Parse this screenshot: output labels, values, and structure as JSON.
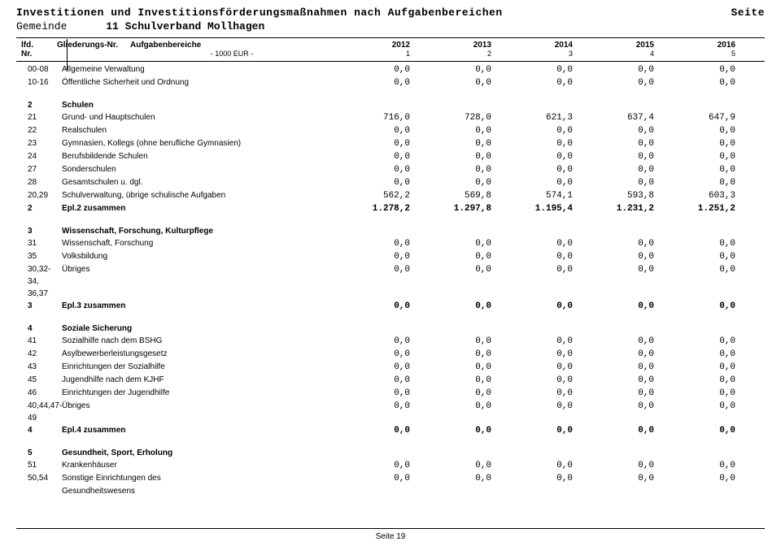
{
  "header": {
    "title": "Investitionen und Investitionsförderungsmaßnahmen nach Aufgabenbereichen",
    "page_label": "Seite",
    "gemeinde_label": "Gemeinde",
    "gemeinde_value": "11 Schulverband Mollhagen"
  },
  "thead": {
    "lfd": "lfd.",
    "nr": "Nr.",
    "glied": "Gliederungs-Nr.",
    "aufg": "Aufgabenbereiche",
    "years": [
      "2012",
      "2013",
      "2014",
      "2015",
      "2016"
    ],
    "eur": "- 1000 EUR -",
    "cols": [
      "1",
      "2",
      "3",
      "4",
      "5"
    ]
  },
  "rows": [
    {
      "nr": "00-08",
      "desc": "Allgemeine Verwaltung",
      "v": [
        "0,0",
        "0,0",
        "0,0",
        "0,0",
        "0,0"
      ]
    },
    {
      "nr": "10-16",
      "desc": "Öffentliche Sicherheit und Ordnung",
      "v": [
        "0,0",
        "0,0",
        "0,0",
        "0,0",
        "0,0"
      ]
    },
    {
      "spacer": true
    },
    {
      "nr": "2",
      "desc": "Schulen",
      "section": true
    },
    {
      "nr": "21",
      "desc": "Grund- und Hauptschulen",
      "v": [
        "716,0",
        "728,0",
        "621,3",
        "637,4",
        "647,9"
      ]
    },
    {
      "nr": "22",
      "desc": "Realschulen",
      "v": [
        "0,0",
        "0,0",
        "0,0",
        "0,0",
        "0,0"
      ]
    },
    {
      "nr": "23",
      "desc": "Gymnasien, Kollegs (ohne berufliche Gymnasien)",
      "v": [
        "0,0",
        "0,0",
        "0,0",
        "0,0",
        "0,0"
      ]
    },
    {
      "nr": "24",
      "desc": "Berufsbildende Schulen",
      "v": [
        "0,0",
        "0,0",
        "0,0",
        "0,0",
        "0,0"
      ]
    },
    {
      "nr": "27",
      "desc": "Sonderschulen",
      "v": [
        "0,0",
        "0,0",
        "0,0",
        "0,0",
        "0,0"
      ]
    },
    {
      "nr": "28",
      "desc": "Gesamtschulen u. dgl.",
      "v": [
        "0,0",
        "0,0",
        "0,0",
        "0,0",
        "0,0"
      ]
    },
    {
      "nr": "20,29",
      "desc": "Schulverwaltung, übrige schulische Aufgaben",
      "v": [
        "562,2",
        "569,8",
        "574,1",
        "593,8",
        "603,3"
      ]
    },
    {
      "nr": "2",
      "desc": "Epl.2 zusammen",
      "v": [
        "1.278,2",
        "1.297,8",
        "1.195,4",
        "1.231,2",
        "1.251,2"
      ],
      "bold": true
    },
    {
      "spacer": true
    },
    {
      "nr": "3",
      "desc": "Wissenschaft, Forschung, Kulturpflege",
      "section": true
    },
    {
      "nr": "31",
      "desc": "Wissenschaft, Forschung",
      "v": [
        "0,0",
        "0,0",
        "0,0",
        "0,0",
        "0,0"
      ]
    },
    {
      "nr": "35",
      "desc": "Volksbildung",
      "v": [
        "0,0",
        "0,0",
        "0,0",
        "0,0",
        "0,0"
      ]
    },
    {
      "nr": "30,32-34,",
      "desc": "Übriges",
      "v": [
        "0,0",
        "0,0",
        "0,0",
        "0,0",
        "0,0"
      ]
    },
    {
      "nr": "36,37",
      "desc": "",
      "v": null
    },
    {
      "nr": "3",
      "desc": "Epl.3 zusammen",
      "v": [
        "0,0",
        "0,0",
        "0,0",
        "0,0",
        "0,0"
      ],
      "bold": true
    },
    {
      "spacer": true
    },
    {
      "nr": "4",
      "desc": "Soziale Sicherung",
      "section": true
    },
    {
      "nr": "41",
      "desc": "Sozialhilfe nach dem BSHG",
      "v": [
        "0,0",
        "0,0",
        "0,0",
        "0,0",
        "0,0"
      ]
    },
    {
      "nr": "42",
      "desc": "Asylbewerberleistungsgesetz",
      "v": [
        "0,0",
        "0,0",
        "0,0",
        "0,0",
        "0,0"
      ]
    },
    {
      "nr": "43",
      "desc": "Einrichtungen der Sozialhilfe",
      "v": [
        "0,0",
        "0,0",
        "0,0",
        "0,0",
        "0,0"
      ]
    },
    {
      "nr": "45",
      "desc": "Jugendhilfe nach dem KJHF",
      "v": [
        "0,0",
        "0,0",
        "0,0",
        "0,0",
        "0,0"
      ]
    },
    {
      "nr": "46",
      "desc": "Einrichtungen der Jugendhilfe",
      "v": [
        "0,0",
        "0,0",
        "0,0",
        "0,0",
        "0,0"
      ]
    },
    {
      "nr": "40,44,47-49",
      "desc": "Übriges",
      "v": [
        "0,0",
        "0,0",
        "0,0",
        "0,0",
        "0,0"
      ]
    },
    {
      "nr": "4",
      "desc": "Epl.4 zusammen",
      "v": [
        "0,0",
        "0,0",
        "0,0",
        "0,0",
        "0,0"
      ],
      "bold": true
    },
    {
      "spacer": true
    },
    {
      "nr": "5",
      "desc": "Gesundheit, Sport, Erholung",
      "section": true
    },
    {
      "nr": "51",
      "desc": "Krankenhäuser",
      "v": [
        "0,0",
        "0,0",
        "0,0",
        "0,0",
        "0,0"
      ]
    },
    {
      "nr": "50,54",
      "desc": "Sonstige Einrichtungen des",
      "v": [
        "0,0",
        "0,0",
        "0,0",
        "0,0",
        "0,0"
      ]
    },
    {
      "nr": "",
      "desc": "Gesundheitswesens",
      "v": null
    }
  ],
  "footer": "Seite 19"
}
